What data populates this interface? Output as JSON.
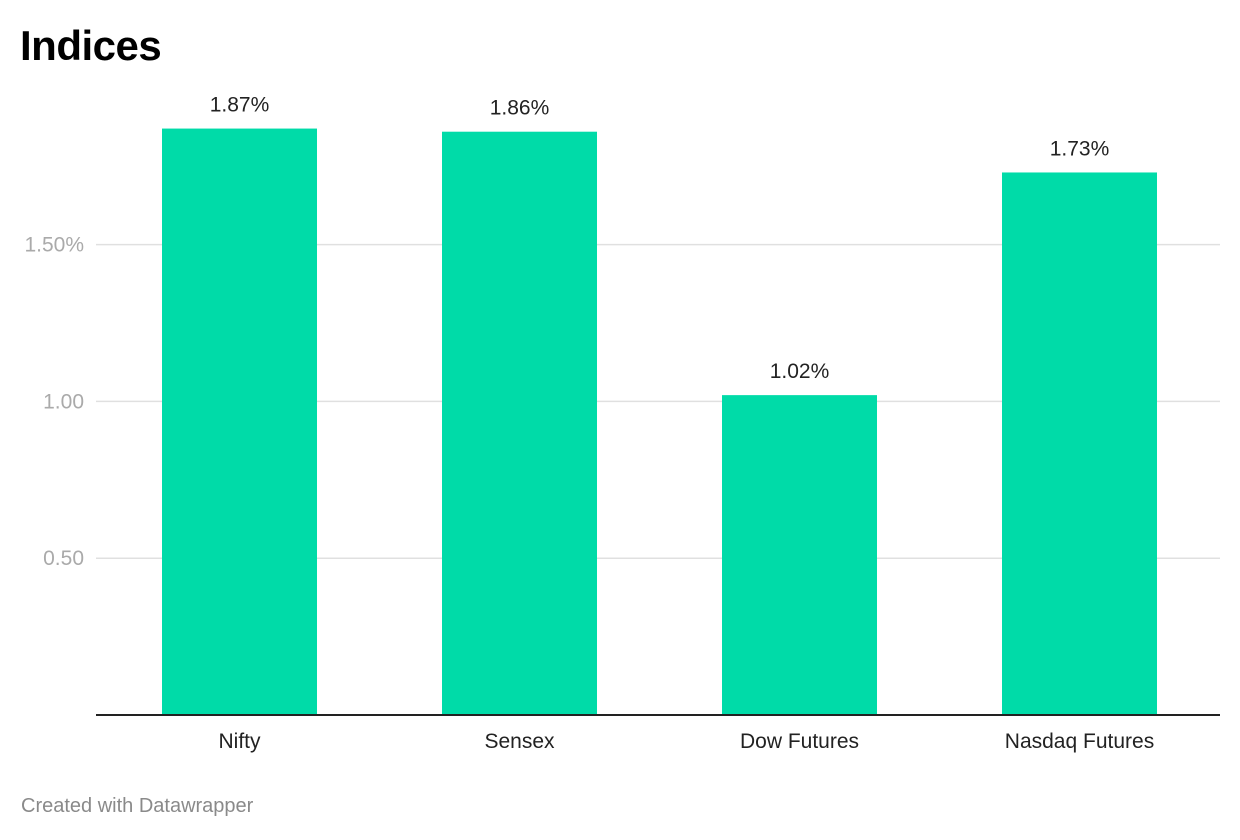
{
  "chart_data": {
    "type": "bar",
    "title": "Indices",
    "categories": [
      "Nifty",
      "Sensex",
      "Dow Futures",
      "Nasdaq Futures"
    ],
    "values": [
      1.87,
      1.86,
      1.02,
      1.73
    ],
    "value_labels": [
      "1.87%",
      "1.86%",
      "1.02%",
      "1.73%"
    ],
    "y_ticks": [
      {
        "value": 0.5,
        "label": "0.50"
      },
      {
        "value": 1.0,
        "label": "1.00"
      },
      {
        "value": 1.5,
        "label": "1.50%"
      }
    ],
    "xlabel": "",
    "ylabel": "",
    "ylim": [
      0,
      2
    ],
    "grid": true,
    "legend": "none",
    "bar_color": "#00dba8",
    "grid_color": "#e0e0e0",
    "axis_color": "#222222",
    "tick_label_color": "#aaaaaa"
  },
  "credit": "Created with Datawrapper"
}
